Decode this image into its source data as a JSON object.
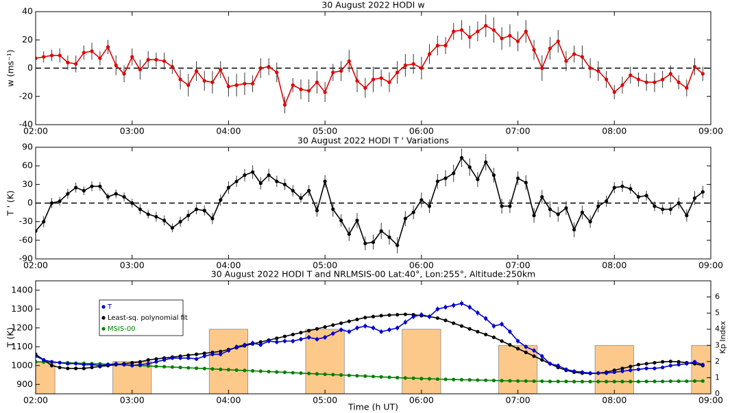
{
  "chart_data": [
    {
      "type": "line",
      "title": "30 August 2022 HODI w",
      "y_label": "w (ms⁻¹)",
      "x": [
        2,
        2.083,
        2.167,
        2.25,
        2.333,
        2.417,
        2.5,
        2.583,
        2.667,
        2.75,
        2.833,
        2.917,
        3,
        3.083,
        3.167,
        3.25,
        3.333,
        3.417,
        3.5,
        3.583,
        3.667,
        3.75,
        3.833,
        3.917,
        4,
        4.083,
        4.167,
        4.25,
        4.333,
        4.417,
        4.5,
        4.583,
        4.667,
        4.75,
        4.833,
        4.917,
        5,
        5.083,
        5.167,
        5.25,
        5.333,
        5.417,
        5.5,
        5.583,
        5.667,
        5.75,
        5.833,
        5.917,
        6,
        6.083,
        6.167,
        6.25,
        6.333,
        6.417,
        6.5,
        6.583,
        6.667,
        6.75,
        6.833,
        6.917,
        7,
        7.083,
        7.167,
        7.25,
        7.333,
        7.417,
        7.5,
        7.583,
        7.667,
        7.75,
        7.833,
        7.917,
        8,
        8.083,
        8.167,
        8.25,
        8.333,
        8.417,
        8.5,
        8.583,
        8.667,
        8.75,
        8.833,
        8.917
      ],
      "xlim": [
        2,
        9
      ],
      "xticks": [
        {
          "value": 2,
          "label": "02:00"
        },
        {
          "value": 3,
          "label": "03:00"
        },
        {
          "value": 4,
          "label": "04:00"
        },
        {
          "value": 5,
          "label": "05:00"
        },
        {
          "value": 6,
          "label": "06:00"
        },
        {
          "value": 7,
          "label": "07:00"
        },
        {
          "value": 8,
          "label": "08:00"
        },
        {
          "value": 9,
          "label": "09:00"
        }
      ],
      "ylim": [
        -40,
        40
      ],
      "yticks": [
        -40,
        -20,
        0,
        20,
        40
      ],
      "hline": 0,
      "series": [
        {
          "color": "#e00000",
          "error_color": "#333333",
          "values": [
            7,
            8,
            9,
            9,
            4,
            3,
            11,
            12,
            7,
            15,
            2,
            -4,
            8,
            -1,
            6,
            6,
            5,
            1,
            -8,
            -12,
            -2,
            -9,
            -10,
            -1,
            -13,
            -12,
            -11,
            -11,
            0,
            1,
            -3,
            -26,
            -12,
            -15,
            -16,
            -10,
            -17,
            -3,
            -2,
            5,
            -9,
            -14,
            -8,
            -7,
            -10,
            -3,
            2,
            3,
            0,
            10,
            16,
            16,
            26,
            27,
            22,
            26,
            30,
            27,
            21,
            23,
            19,
            26,
            13,
            0,
            14,
            19,
            5,
            10,
            8,
            0,
            -2,
            -8,
            -17,
            -12,
            -5,
            -8,
            -10,
            -10,
            -8,
            -4,
            -10,
            -14,
            1,
            -4
          ],
          "errors": [
            3,
            4,
            4,
            5,
            5,
            6,
            5,
            6,
            5,
            5,
            7,
            6,
            6,
            7,
            6,
            5,
            6,
            5,
            7,
            8,
            7,
            7,
            8,
            6,
            7,
            8,
            8,
            6,
            7,
            6,
            7,
            6,
            5,
            7,
            8,
            8,
            7,
            6,
            7,
            8,
            8,
            7,
            9,
            6,
            7,
            8,
            8,
            7,
            8,
            7,
            7,
            6,
            6,
            7,
            8,
            7,
            8,
            9,
            8,
            8,
            7,
            8,
            7,
            9,
            8,
            8,
            7,
            6,
            8,
            7,
            7,
            6,
            5,
            6,
            6,
            5,
            6,
            7,
            6,
            6,
            5,
            6,
            6,
            5
          ]
        }
      ]
    },
    {
      "type": "line",
      "title": "30 August 2022 HODI T ' Variations",
      "y_label": "T ' (K)",
      "x": [
        2,
        2.083,
        2.167,
        2.25,
        2.333,
        2.417,
        2.5,
        2.583,
        2.667,
        2.75,
        2.833,
        2.917,
        3,
        3.083,
        3.167,
        3.25,
        3.333,
        3.417,
        3.5,
        3.583,
        3.667,
        3.75,
        3.833,
        3.917,
        4,
        4.083,
        4.167,
        4.25,
        4.333,
        4.417,
        4.5,
        4.583,
        4.667,
        4.75,
        4.833,
        4.917,
        5,
        5.083,
        5.167,
        5.25,
        5.333,
        5.417,
        5.5,
        5.583,
        5.667,
        5.75,
        5.833,
        5.917,
        6,
        6.083,
        6.167,
        6.25,
        6.333,
        6.417,
        6.5,
        6.583,
        6.667,
        6.75,
        6.833,
        6.917,
        7,
        7.083,
        7.167,
        7.25,
        7.333,
        7.417,
        7.5,
        7.583,
        7.667,
        7.75,
        7.833,
        7.917,
        8,
        8.083,
        8.167,
        8.25,
        8.333,
        8.417,
        8.5,
        8.583,
        8.667,
        8.75,
        8.833,
        8.917
      ],
      "xlim": [
        2,
        9
      ],
      "xticks": [
        {
          "value": 2,
          "label": "02:00"
        },
        {
          "value": 3,
          "label": "03:00"
        },
        {
          "value": 4,
          "label": "04:00"
        },
        {
          "value": 5,
          "label": "05:00"
        },
        {
          "value": 6,
          "label": "06:00"
        },
        {
          "value": 7,
          "label": "07:00"
        },
        {
          "value": 8,
          "label": "08:00"
        },
        {
          "value": 9,
          "label": "09:00"
        }
      ],
      "ylim": [
        -90,
        90
      ],
      "yticks": [
        -90,
        -60,
        -30,
        0,
        30,
        60,
        90
      ],
      "hline": 0,
      "series": [
        {
          "color": "#000000",
          "error_color": "#333333",
          "values": [
            -45,
            -30,
            0,
            3,
            15,
            25,
            20,
            27,
            27,
            10,
            15,
            10,
            0,
            -10,
            -18,
            -22,
            -28,
            -40,
            -30,
            -20,
            -10,
            -12,
            -25,
            5,
            25,
            35,
            45,
            50,
            32,
            45,
            35,
            30,
            20,
            8,
            20,
            -12,
            35,
            -10,
            -28,
            -50,
            -28,
            -65,
            -63,
            -45,
            -55,
            -68,
            -25,
            -15,
            5,
            -5,
            35,
            40,
            48,
            73,
            58,
            38,
            66,
            45,
            -5,
            -5,
            40,
            33,
            -20,
            10,
            -10,
            -18,
            -8,
            -43,
            -15,
            -30,
            -5,
            3,
            25,
            27,
            23,
            10,
            12,
            -5,
            -10,
            -10,
            0,
            -20,
            8,
            18
          ],
          "errors": [
            8,
            9,
            8,
            7,
            8,
            8,
            7,
            8,
            7,
            6,
            7,
            7,
            7,
            8,
            7,
            8,
            8,
            7,
            8,
            9,
            8,
            8,
            9,
            9,
            10,
            9,
            10,
            11,
            10,
            10,
            9,
            9,
            9,
            8,
            9,
            10,
            10,
            12,
            10,
            11,
            12,
            11,
            12,
            13,
            12,
            13,
            12,
            11,
            12,
            11,
            12,
            13,
            14,
            15,
            14,
            12,
            13,
            12,
            12,
            11,
            11,
            12,
            12,
            11,
            13,
            12,
            11,
            12,
            11,
            10,
            10,
            9,
            9,
            9,
            8,
            8,
            8,
            8,
            8,
            9,
            9,
            10,
            11,
            10
          ]
        }
      ]
    },
    {
      "type": "line",
      "title": "30 August 2022 HODI T and NRLMSIS-00 Lat:40°, Lon:255°, Altitude:250km",
      "y_label": "T (K)",
      "y2_label": "Kp Index",
      "x_label": "Time (h UT)",
      "legend": "upper left",
      "x": [
        2,
        2.083,
        2.167,
        2.25,
        2.333,
        2.417,
        2.5,
        2.583,
        2.667,
        2.75,
        2.833,
        2.917,
        3,
        3.083,
        3.167,
        3.25,
        3.333,
        3.417,
        3.5,
        3.583,
        3.667,
        3.75,
        3.833,
        3.917,
        4,
        4.083,
        4.167,
        4.25,
        4.333,
        4.417,
        4.5,
        4.583,
        4.667,
        4.75,
        4.833,
        4.917,
        5,
        5.083,
        5.167,
        5.25,
        5.333,
        5.417,
        5.5,
        5.583,
        5.667,
        5.75,
        5.833,
        5.917,
        6,
        6.083,
        6.167,
        6.25,
        6.333,
        6.417,
        6.5,
        6.583,
        6.667,
        6.75,
        6.833,
        6.917,
        7,
        7.083,
        7.167,
        7.25,
        7.333,
        7.417,
        7.5,
        7.583,
        7.667,
        7.75,
        7.833,
        7.917,
        8,
        8.083,
        8.167,
        8.25,
        8.333,
        8.417,
        8.5,
        8.583,
        8.667,
        8.75,
        8.833,
        8.917
      ],
      "xlim": [
        2,
        9
      ],
      "xticks": [
        {
          "value": 2,
          "label": "02:00"
        },
        {
          "value": 3,
          "label": "03:00"
        },
        {
          "value": 4,
          "label": "04:00"
        },
        {
          "value": 5,
          "label": "05:00"
        },
        {
          "value": 6,
          "label": "06:00"
        },
        {
          "value": 7,
          "label": "07:00"
        },
        {
          "value": 8,
          "label": "08:00"
        },
        {
          "value": 9,
          "label": "09:00"
        }
      ],
      "ylim": [
        850,
        1450
      ],
      "yticks": [
        900,
        1000,
        1100,
        1200,
        1300,
        1400
      ],
      "y2lim": [
        0,
        7
      ],
      "y2ticks": [
        0,
        1,
        2,
        3,
        4,
        5,
        6
      ],
      "bars": {
        "axis": "y2",
        "color": "#fdc98a",
        "x": [
          2,
          3,
          4,
          5,
          6,
          7,
          8,
          9
        ],
        "values": [
          2,
          2,
          4,
          4,
          4,
          3,
          3,
          3
        ]
      },
      "series": [
        {
          "name": "T",
          "color": "#0000cc",
          "error_color": "#0000cc",
          "values": [
            1050,
            1030,
            1020,
            1015,
            1010,
            1010,
            1005,
            1005,
            1000,
            1005,
            1010,
            1005,
            1000,
            1005,
            1010,
            1020,
            1030,
            1040,
            1040,
            1040,
            1035,
            1050,
            1060,
            1060,
            1080,
            1100,
            1110,
            1120,
            1110,
            1130,
            1125,
            1130,
            1130,
            1140,
            1150,
            1140,
            1150,
            1170,
            1190,
            1180,
            1200,
            1210,
            1200,
            1180,
            1190,
            1200,
            1230,
            1260,
            1270,
            1260,
            1300,
            1310,
            1320,
            1330,
            1310,
            1280,
            1250,
            1210,
            1220,
            1180,
            1130,
            1100,
            1080,
            1050,
            1010,
            1000,
            980,
            970,
            965,
            960,
            960,
            960,
            965,
            970,
            975,
            980,
            985,
            985,
            990,
            1000,
            1005,
            1010,
            1020,
            1005
          ],
          "errors": [
            10,
            9,
            9,
            9,
            8,
            8,
            8,
            8,
            8,
            8,
            9,
            9,
            9,
            9,
            9,
            10,
            10,
            10,
            10,
            10,
            10,
            10,
            11,
            11,
            11,
            11,
            12,
            12,
            12,
            12,
            12,
            12,
            12,
            12,
            12,
            12,
            13,
            13,
            13,
            13,
            13,
            13,
            13,
            13,
            13,
            13,
            14,
            14,
            14,
            14,
            14,
            14,
            15,
            15,
            15,
            15,
            14,
            14,
            14,
            13,
            13,
            12,
            12,
            12,
            11,
            11,
            10,
            10,
            10,
            10,
            10,
            10,
            10,
            10,
            10,
            10,
            10,
            10,
            10,
            10,
            10,
            10,
            10,
            10
          ]
        },
        {
          "name": "Least-sq. polynomial fit",
          "color": "#000000",
          "values": [
            1060,
            1030,
            1000,
            990,
            985,
            985,
            985,
            990,
            995,
            1000,
            1005,
            1010,
            1015,
            1020,
            1030,
            1035,
            1040,
            1045,
            1050,
            1055,
            1060,
            1065,
            1070,
            1075,
            1085,
            1095,
            1105,
            1115,
            1125,
            1135,
            1145,
            1155,
            1165,
            1175,
            1185,
            1195,
            1205,
            1215,
            1225,
            1235,
            1245,
            1255,
            1260,
            1265,
            1268,
            1270,
            1272,
            1270,
            1265,
            1260,
            1252,
            1240,
            1225,
            1210,
            1195,
            1180,
            1165,
            1150,
            1130,
            1110,
            1090,
            1070,
            1050,
            1030,
            1010,
            990,
            975,
            965,
            960,
            958,
            960,
            965,
            975,
            985,
            995,
            1005,
            1010,
            1015,
            1020,
            1022,
            1020,
            1015,
            1010,
            1000
          ]
        },
        {
          "name": "MSIS-00",
          "color": "#007f00",
          "values": [
            1020,
            1019,
            1018,
            1016,
            1015,
            1013,
            1012,
            1010,
            1009,
            1007,
            1005,
            1004,
            1002,
            1000,
            998,
            996,
            994,
            992,
            990,
            988,
            986,
            984,
            982,
            980,
            978,
            976,
            974,
            972,
            970,
            968,
            966,
            964,
            962,
            960,
            958,
            956,
            954,
            952,
            950,
            948,
            946,
            944,
            942,
            940,
            938,
            936,
            934,
            933,
            931,
            930,
            928,
            927,
            926,
            925,
            924,
            923,
            922,
            921,
            920,
            919,
            918,
            918,
            917,
            917,
            916,
            916,
            916,
            915,
            915,
            915,
            915,
            915,
            915,
            915,
            915,
            915,
            916,
            916,
            916,
            917,
            917,
            917,
            918,
            918
          ]
        }
      ]
    }
  ]
}
